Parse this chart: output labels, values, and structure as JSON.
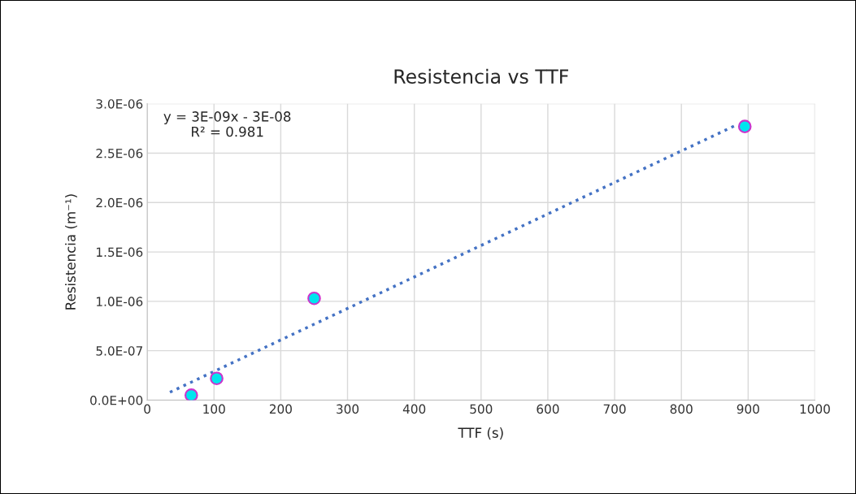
{
  "chart_data": {
    "type": "scatter",
    "title": "Resistencia vs TTF",
    "xlabel": "TTF (s)",
    "ylabel": "Resistencia (m⁻¹)",
    "series": [
      {
        "color": "#00e5ee",
        "x": [
          66,
          104,
          250,
          895
        ],
        "values": [
          5e-08,
          2.2e-07,
          1.03e-06,
          2.77e-06
        ],
        "marker": "circle"
      },
      {
        "type": "line",
        "color": "#4472c4",
        "x": [
          34,
          884
        ],
        "values": [
          8e-08,
          2.79e-06
        ],
        "line_style": "dotted",
        "marker": "none"
      }
    ],
    "annotations": [
      "y = 3E-09x - 3E-08\nR² = 0.981"
    ],
    "xlim": [
      0,
      1000
    ],
    "xticks": [
      0,
      100,
      200,
      300,
      400,
      500,
      600,
      700,
      800,
      900,
      1000
    ],
    "ylim": [
      0,
      3e-06
    ],
    "yticks": [
      {
        "value": 0,
        "label": "0.0E+00"
      },
      {
        "value": 5e-07,
        "label": "5.0E-07"
      },
      {
        "value": 1e-06,
        "label": "1.0E-06"
      },
      {
        "value": 1.5e-06,
        "label": "1.5E-06"
      },
      {
        "value": 2e-06,
        "label": "2.0E-06"
      },
      {
        "value": 2.5e-06,
        "label": "2.5E-06"
      },
      {
        "value": 3e-06,
        "label": "3.0E-06"
      }
    ],
    "grid": true,
    "legend": false
  }
}
